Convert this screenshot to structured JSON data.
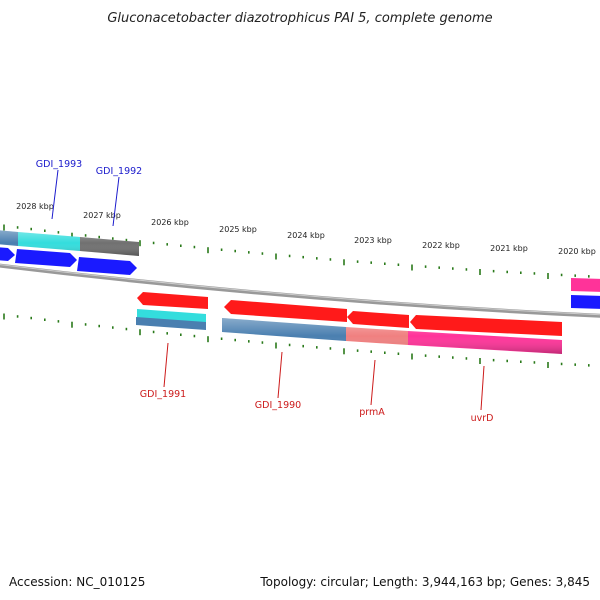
{
  "title": "Gluconacetobacter diazotrophicus PAI 5, complete genome",
  "footer": {
    "accession": "Accession: NC_010125",
    "summary": "Topology: circular; Length: 3,944,163 bp; Genes: 3,845"
  },
  "colors": {
    "forward_label": "#1a1acc",
    "reverse_label": "#cc1a1a",
    "tick": "#2a7a1a",
    "backbone": "#888888",
    "red": "#ff1a1a",
    "blue": "#1a1aff",
    "cyan": "#33dddd",
    "steelblue": "#4a7fb0",
    "gray": "#707070",
    "pink": "#ff3399",
    "salmon": "#f08080"
  },
  "scale_labels": [
    "2028 kbp",
    "2027 kbp",
    "2026 kbp",
    "2025 kbp",
    "2024 kbp",
    "2023 kbp",
    "2022 kbp",
    "2021 kbp",
    "2020 kbp"
  ],
  "gene_labels": {
    "gdi_1993": "GDI_1993",
    "gdi_1992": "GDI_1992",
    "gdi_1991": "GDI_1991",
    "gdi_1990": "GDI_1990",
    "prmA": "prmA",
    "uvrD": "uvrD"
  }
}
